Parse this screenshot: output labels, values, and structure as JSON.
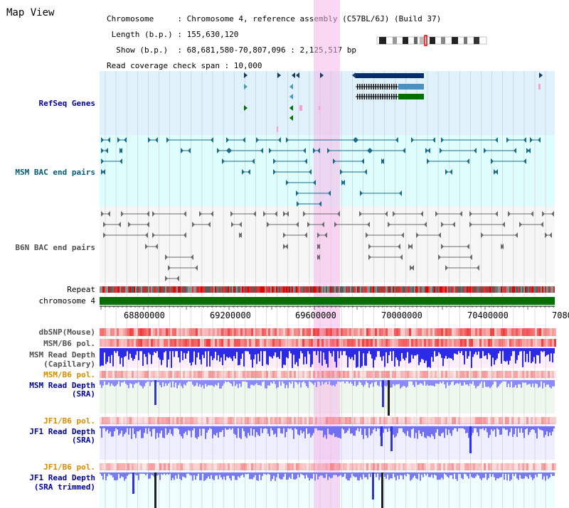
{
  "header": {
    "title": "Map View",
    "info_lines": [
      "Chromosome     : Chromosome 4, reference assembly (C57BL/6J) (Build 37)",
      " Length (b.p.) : 155,630,120",
      "  Show (b.p.)  : 68,681,580-70,807,096 : 2,125,517 bp",
      "Read coverage check span : 10,000"
    ]
  },
  "tracks": {
    "refseq": "RefSeq Genes",
    "msm_bac": "MSM BAC end pairs",
    "b6n_bac": "B6N BAC end pairs",
    "repeat": "Repeat",
    "chromosome": "chromosome 4",
    "dbsnp": "dbSNP(Mouse)",
    "msm_b6_pol_1": "MSM/B6 pol.",
    "msm_read_depth_cap": "MSM Read Depth",
    "msm_read_depth_cap_sub": "(Capillary)",
    "msm_b6_pol_2": "MSM/B6 pol.",
    "msm_read_depth_sra": "MSM Read Depth",
    "msm_read_depth_sra_sub": "(SRA)",
    "jf1_b6_pol_1": "JF1/B6 pol.",
    "jf1_read_depth_sra": "JF1 Read Depth",
    "jf1_read_depth_sra_sub": "(SRA)",
    "jf1_b6_pol_2": "JF1/B6 pol.",
    "jf1_read_depth_trim": "JF1 Read Depth",
    "jf1_read_depth_trim_sub": "(SRA trimmed)"
  },
  "axis": {
    "ticks": [
      "68800000",
      "69200000",
      "69600000",
      "70000000",
      "70400000",
      "7080"
    ]
  },
  "colors": {
    "refseq_bg": "#dff1fb",
    "msm_bg": "#e0fdfd",
    "b6n_bg": "#f7f7f7",
    "highlight": "#f9d4f1",
    "chromosome": "#007000",
    "depth_blue": "#3a3af0",
    "pol_red": "#f06060"
  }
}
